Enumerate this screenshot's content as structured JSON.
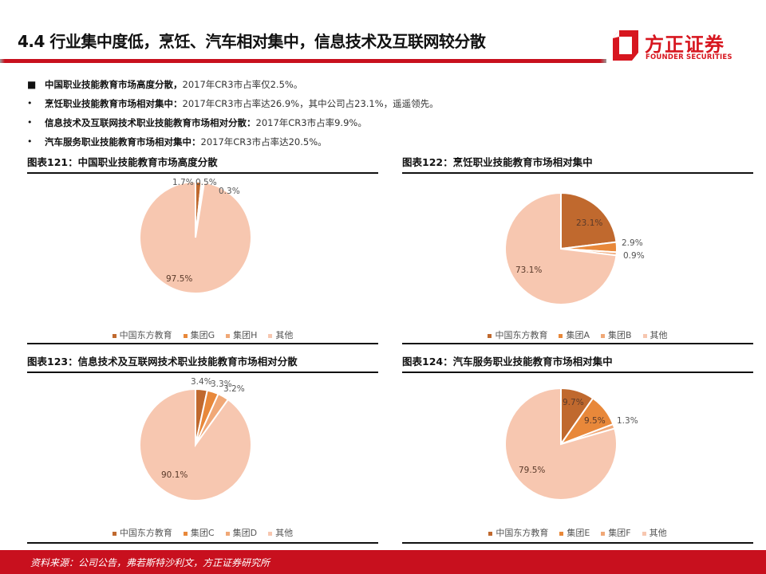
{
  "header": {
    "title": "4.4 行业集中度低，烹饪、汽车相对集中，信息技术及互联网较分散",
    "logo": {
      "cn": "方正证券",
      "en": "FOUNDER SECURITIES",
      "brand_color": "#d7161f"
    }
  },
  "bullets": [
    {
      "mark": "■",
      "bold": "中国职业技能教育市场高度分散，",
      "text": "2017年CR3市占率仅2.5%。"
    },
    {
      "mark": "•",
      "bold": "烹饪职业技能教育市场相对集中：",
      "text": "2017年CR3市占率达26.9%，其中公司占23.1%，遥遥领先。"
    },
    {
      "mark": "•",
      "bold": "信息技术及互联网技术职业技能教育市场相对分散：",
      "text": "2017年CR3市占率9.9%。"
    },
    {
      "mark": "•",
      "bold": "汽车服务职业技能教育市场相对集中：",
      "text": "2017年CR3市占率达20.5%。"
    }
  ],
  "colors": {
    "s1": "#c0692e",
    "s2": "#e8883a",
    "s3": "#f0a877",
    "other": "#f7c7b0",
    "accent_red": "#c8101e"
  },
  "panels": [
    {
      "title": "图表121：中国职业技能教育市场高度分散",
      "legend": [
        "中国东方教育",
        "集团G",
        "集团H",
        "其他"
      ],
      "labels": [
        "1.7%",
        "0.5%",
        "0.3%",
        "97.5%"
      ]
    },
    {
      "title": "图表122：烹饪职业技能教育市场相对集中",
      "legend": [
        "中国东方教育",
        "集团A",
        "集团B",
        "其他"
      ],
      "labels": [
        "23.1%",
        "2.9%",
        "0.9%",
        "73.1%"
      ]
    },
    {
      "title": "图表123：信息技术及互联网技术职业技能教育市场相对分散",
      "legend": [
        "中国东方教育",
        "集团C",
        "集团D",
        "其他"
      ],
      "labels": [
        "3.4%",
        "3.3%",
        "3.2%",
        "90.1%"
      ]
    },
    {
      "title": "图表124：汽车服务职业技能教育市场相对集中",
      "legend": [
        "中国东方教育",
        "集团E",
        "集团F",
        "其他"
      ],
      "labels": [
        "9.7%",
        "9.5%",
        "1.3%",
        "79.5%"
      ]
    }
  ],
  "chart_data": [
    {
      "type": "pie",
      "title": "图表121：中国职业技能教育市场高度分散",
      "categories": [
        "中国东方教育",
        "集团G",
        "集团H",
        "其他"
      ],
      "values": [
        1.7,
        0.5,
        0.3,
        97.5
      ],
      "unit": "%",
      "legend_position": "bottom"
    },
    {
      "type": "pie",
      "title": "图表122：烹饪职业技能教育市场相对集中",
      "categories": [
        "中国东方教育",
        "集团A",
        "集团B",
        "其他"
      ],
      "values": [
        23.1,
        2.9,
        0.9,
        73.1
      ],
      "unit": "%",
      "legend_position": "bottom"
    },
    {
      "type": "pie",
      "title": "图表123：信息技术及互联网技术职业技能教育市场相对分散",
      "categories": [
        "中国东方教育",
        "集团C",
        "集团D",
        "其他"
      ],
      "values": [
        3.4,
        3.3,
        3.2,
        90.1
      ],
      "unit": "%",
      "legend_position": "bottom"
    },
    {
      "type": "pie",
      "title": "图表124：汽车服务职业技能教育市场相对集中",
      "categories": [
        "中国东方教育",
        "集团E",
        "集团F",
        "其他"
      ],
      "values": [
        9.7,
        9.5,
        1.3,
        79.5
      ],
      "unit": "%",
      "legend_position": "bottom"
    }
  ],
  "footer": {
    "source": "资料来源：公司公告，弗若斯特沙利文，方正证券研究所"
  }
}
